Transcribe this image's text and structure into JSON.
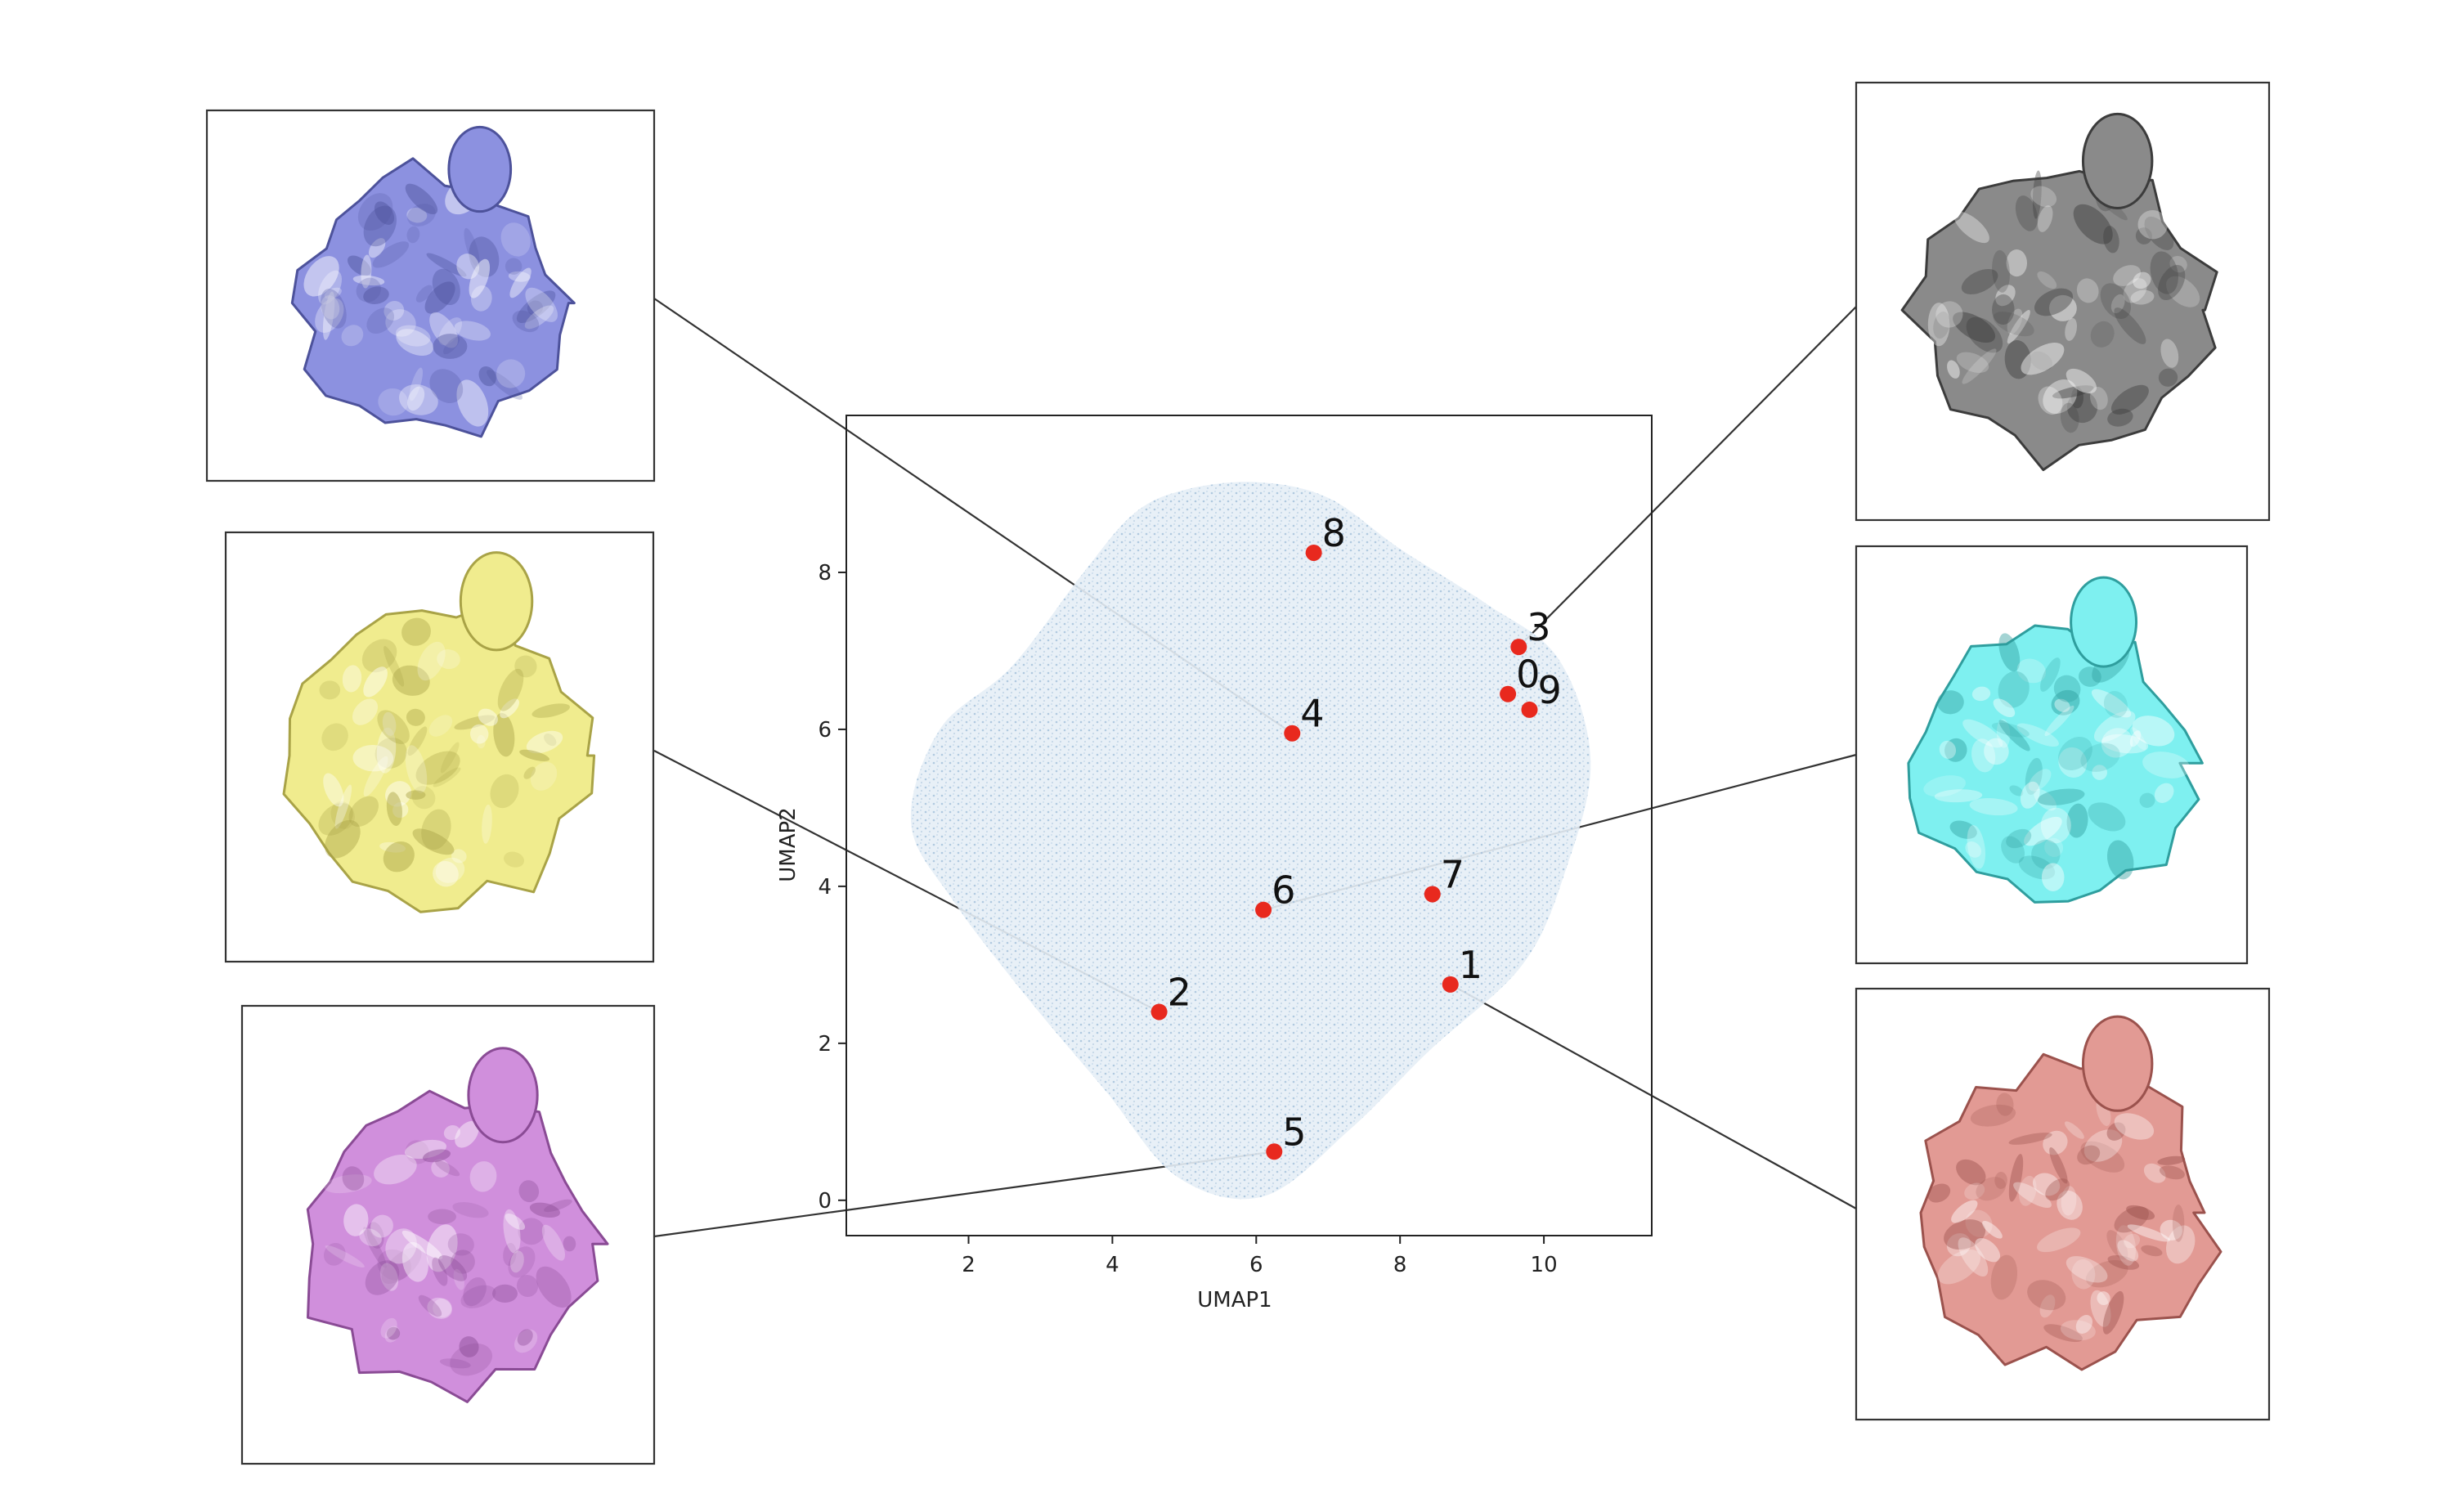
{
  "chart_data": {
    "type": "scatter",
    "title": "",
    "xlabel": "UMAP1",
    "ylabel": "UMAP2",
    "xlim": [
      0.3,
      11.5
    ],
    "ylim": [
      -0.45,
      10.0
    ],
    "xticks": [
      2,
      4,
      6,
      8,
      10
    ],
    "yticks": [
      0,
      2,
      4,
      6,
      8
    ],
    "grid": false,
    "legend": "none",
    "background_color": "#a9c6df",
    "highlight_color": "#e8291e",
    "points": [
      {
        "label": "0",
        "x": 9.5,
        "y": 6.45
      },
      {
        "label": "1",
        "x": 8.7,
        "y": 2.75
      },
      {
        "label": "2",
        "x": 4.65,
        "y": 2.4
      },
      {
        "label": "3",
        "x": 9.65,
        "y": 7.05
      },
      {
        "label": "4",
        "x": 6.5,
        "y": 5.95
      },
      {
        "label": "5",
        "x": 6.25,
        "y": 0.62
      },
      {
        "label": "6",
        "x": 6.1,
        "y": 3.7
      },
      {
        "label": "7",
        "x": 8.45,
        "y": 3.9
      },
      {
        "label": "8",
        "x": 6.8,
        "y": 8.25
      },
      {
        "label": "9",
        "x": 9.8,
        "y": 6.25
      }
    ],
    "density_outline": [
      [
        5.0,
        9.05
      ],
      [
        6.0,
        9.15
      ],
      [
        7.0,
        8.95
      ],
      [
        8.0,
        8.3
      ],
      [
        9.2,
        7.6
      ],
      [
        10.2,
        6.9
      ],
      [
        10.65,
        5.6
      ],
      [
        10.3,
        4.2
      ],
      [
        9.7,
        3.0
      ],
      [
        8.4,
        1.9
      ],
      [
        7.3,
        0.9
      ],
      [
        6.1,
        0.05
      ],
      [
        4.9,
        0.3
      ],
      [
        3.9,
        1.4
      ],
      [
        2.8,
        2.6
      ],
      [
        1.8,
        3.8
      ],
      [
        1.2,
        4.8
      ],
      [
        1.6,
        6.0
      ],
      [
        2.6,
        6.8
      ],
      [
        3.6,
        8.0
      ],
      [
        4.3,
        8.75
      ]
    ]
  },
  "insets": [
    {
      "id": "4",
      "color": "#8c91e0",
      "dark": "#4d529b"
    },
    {
      "id": "2",
      "color": "#f0ec8e",
      "dark": "#a9a347"
    },
    {
      "id": "5",
      "color": "#d08fdc",
      "dark": "#8a4b95"
    },
    {
      "id": "3",
      "color": "#8a8a8a",
      "dark": "#3c3c3c"
    },
    {
      "id": "6",
      "color": "#7ef0f0",
      "dark": "#2f9e9e"
    },
    {
      "id": "1",
      "color": "#e29a94",
      "dark": "#9b524d"
    }
  ]
}
